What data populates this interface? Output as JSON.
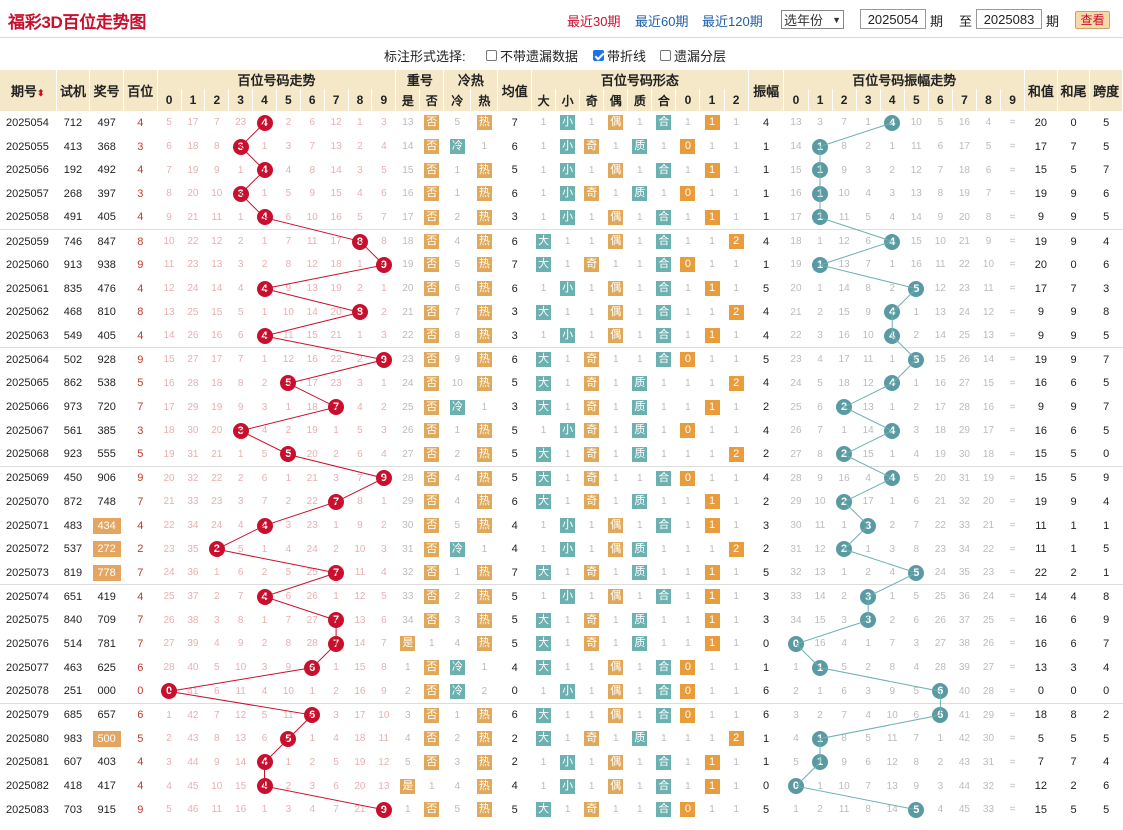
{
  "title": "福彩3D百位走势图",
  "nav": {
    "p30": "最近30期",
    "p60": "最近60期",
    "p120": "最近120期"
  },
  "year_select": "选年份",
  "range": {
    "from": "2025054",
    "to": "2025083",
    "lbl_qi": "期",
    "lbl_zhi": "至"
  },
  "query_button": "查看",
  "options": {
    "label": "标注形式选择:",
    "items": [
      {
        "label": "不带遗漏数据",
        "checked": false
      },
      {
        "label": "带折线",
        "checked": true
      },
      {
        "label": "遗漏分层",
        "checked": false
      }
    ]
  },
  "headers": {
    "issue": "期号",
    "shiji": "试机",
    "jianghao": "奖号",
    "bai": "百位",
    "trend": "百位号码走势",
    "chonghao": "重号",
    "lengre": "冷热",
    "junzhi": "均值",
    "xingtai": "百位号码形态",
    "zhenfu": "振幅",
    "zftrend": "百位号码振幅走势",
    "hezhi": "和值",
    "hewei": "和尾",
    "kuadu": "跨度",
    "shi": "是",
    "fou": "否",
    "leng": "冷",
    "re": "热",
    "da": "大",
    "xiao": "小",
    "ji": "奇",
    "ou": "偶",
    "zhi": "质",
    "he": "合",
    "digits": [
      "0",
      "1",
      "2",
      "3",
      "4",
      "5",
      "6",
      "7",
      "8",
      "9"
    ],
    "road": [
      "0",
      "1",
      "2"
    ]
  },
  "colors": {
    "red": "#c8102e",
    "orange": "#e0a85a",
    "teal": "#6db0b0",
    "header": "#f5e8c8"
  },
  "rows": [
    {
      "qh": "2025054",
      "sj": "712",
      "jh": "497",
      "zu": false,
      "b": 4,
      "tr": [
        "5",
        "17",
        "7",
        "23",
        "4",
        "2",
        "6",
        "12",
        "1",
        "3"
      ],
      "ch": "13",
      "lr": "热",
      "lrv": "5",
      "jz": "7",
      "zf": "4",
      "zft": [
        "13",
        "3",
        "7",
        "1",
        "4",
        "10",
        "5",
        "16",
        "4",
        "="
      ],
      "hz": "20",
      "hw": "0",
      "kd": "5"
    },
    {
      "qh": "2025055",
      "sj": "413",
      "jh": "368",
      "zu": false,
      "b": 3,
      "tr": [
        "6",
        "18",
        "8",
        "3",
        "1",
        "3",
        "7",
        "13",
        "2",
        "4"
      ],
      "ch": "14",
      "lr": "冷",
      "lrv": "1",
      "jz": "6",
      "zf": "1",
      "zft": [
        "14",
        "1",
        "8",
        "2",
        "1",
        "11",
        "6",
        "17",
        "5",
        "="
      ],
      "hz": "17",
      "hw": "7",
      "kd": "5"
    },
    {
      "qh": "2025056",
      "sj": "192",
      "jh": "492",
      "zu": false,
      "b": 4,
      "tr": [
        "7",
        "19",
        "9",
        "1",
        "4",
        "4",
        "8",
        "14",
        "3",
        "5"
      ],
      "ch": "15",
      "lr": "热",
      "lrv": "1",
      "jz": "5",
      "zf": "1",
      "zft": [
        "15",
        "1",
        "9",
        "3",
        "2",
        "12",
        "7",
        "18",
        "6",
        "="
      ],
      "hz": "15",
      "hw": "5",
      "kd": "7"
    },
    {
      "qh": "2025057",
      "sj": "268",
      "jh": "397",
      "zu": false,
      "b": 3,
      "tr": [
        "8",
        "20",
        "10",
        "3",
        "1",
        "5",
        "9",
        "15",
        "4",
        "6"
      ],
      "ch": "16",
      "lr": "热",
      "lrv": "1",
      "jz": "6",
      "zf": "1",
      "zft": [
        "16",
        "1",
        "10",
        "4",
        "3",
        "13",
        "8",
        "19",
        "7",
        "="
      ],
      "hz": "19",
      "hw": "9",
      "kd": "6"
    },
    {
      "qh": "2025058",
      "sj": "491",
      "jh": "405",
      "zu": false,
      "b": 4,
      "tr": [
        "9",
        "21",
        "11",
        "1",
        "4",
        "6",
        "10",
        "16",
        "5",
        "7"
      ],
      "ch": "17",
      "lr": "热",
      "lrv": "2",
      "jz": "3",
      "zf": "1",
      "zft": [
        "17",
        "1",
        "11",
        "5",
        "4",
        "14",
        "9",
        "20",
        "8",
        "="
      ],
      "hz": "9",
      "hw": "9",
      "kd": "5"
    },
    {
      "qh": "2025059",
      "sj": "746",
      "jh": "847",
      "zu": false,
      "b": 8,
      "tr": [
        "10",
        "22",
        "12",
        "2",
        "1",
        "7",
        "11",
        "17",
        "8",
        "8"
      ],
      "ch": "18",
      "lr": "热",
      "lrv": "4",
      "jz": "6",
      "zf": "4",
      "zft": [
        "18",
        "1",
        "12",
        "6",
        "4",
        "15",
        "10",
        "21",
        "9",
        "="
      ],
      "hz": "19",
      "hw": "9",
      "kd": "4"
    },
    {
      "qh": "2025060",
      "sj": "913",
      "jh": "938",
      "zu": false,
      "b": 9,
      "tr": [
        "11",
        "23",
        "13",
        "3",
        "2",
        "8",
        "12",
        "18",
        "1",
        "9"
      ],
      "ch": "19",
      "lr": "热",
      "lrv": "5",
      "jz": "7",
      "zf": "1",
      "zft": [
        "19",
        "1",
        "13",
        "7",
        "1",
        "16",
        "11",
        "22",
        "10",
        "="
      ],
      "hz": "20",
      "hw": "0",
      "kd": "6"
    },
    {
      "qh": "2025061",
      "sj": "835",
      "jh": "476",
      "zu": false,
      "b": 4,
      "tr": [
        "12",
        "24",
        "14",
        "4",
        "4",
        "9",
        "13",
        "19",
        "2",
        "1"
      ],
      "ch": "20",
      "lr": "热",
      "lrv": "6",
      "jz": "6",
      "zf": "5",
      "zft": [
        "20",
        "1",
        "14",
        "8",
        "2",
        "5",
        "12",
        "23",
        "11",
        "="
      ],
      "hz": "17",
      "hw": "7",
      "kd": "3"
    },
    {
      "qh": "2025062",
      "sj": "468",
      "jh": "810",
      "zu": false,
      "b": 8,
      "tr": [
        "13",
        "25",
        "15",
        "5",
        "1",
        "10",
        "14",
        "20",
        "8",
        "2"
      ],
      "ch": "21",
      "lr": "热",
      "lrv": "7",
      "jz": "3",
      "zf": "4",
      "zft": [
        "21",
        "2",
        "15",
        "9",
        "4",
        "1",
        "13",
        "24",
        "12",
        "="
      ],
      "hz": "9",
      "hw": "9",
      "kd": "8"
    },
    {
      "qh": "2025063",
      "sj": "549",
      "jh": "405",
      "zu": false,
      "b": 4,
      "tr": [
        "14",
        "26",
        "16",
        "6",
        "4",
        "11",
        "15",
        "21",
        "1",
        "3"
      ],
      "ch": "22",
      "lr": "热",
      "lrv": "8",
      "jz": "3",
      "zf": "4",
      "zft": [
        "22",
        "3",
        "16",
        "10",
        "4",
        "2",
        "14",
        "25",
        "13",
        "="
      ],
      "hz": "9",
      "hw": "9",
      "kd": "5"
    },
    {
      "qh": "2025064",
      "sj": "502",
      "jh": "928",
      "zu": false,
      "b": 9,
      "tr": [
        "15",
        "27",
        "17",
        "7",
        "1",
        "12",
        "16",
        "22",
        "2",
        "9"
      ],
      "ch": "23",
      "lr": "热",
      "lrv": "9",
      "jz": "6",
      "zf": "5",
      "zft": [
        "23",
        "4",
        "17",
        "11",
        "1",
        "5",
        "15",
        "26",
        "14",
        "="
      ],
      "hz": "19",
      "hw": "9",
      "kd": "7"
    },
    {
      "qh": "2025065",
      "sj": "862",
      "jh": "538",
      "zu": false,
      "b": 5,
      "tr": [
        "16",
        "28",
        "18",
        "8",
        "2",
        "5",
        "17",
        "23",
        "3",
        "1"
      ],
      "ch": "24",
      "lr": "热",
      "lrv": "10",
      "jz": "5",
      "zf": "4",
      "zft": [
        "24",
        "5",
        "18",
        "12",
        "4",
        "1",
        "16",
        "27",
        "15",
        "="
      ],
      "hz": "16",
      "hw": "6",
      "kd": "5"
    },
    {
      "qh": "2025066",
      "sj": "973",
      "jh": "720",
      "zu": false,
      "b": 7,
      "tr": [
        "17",
        "29",
        "19",
        "9",
        "3",
        "1",
        "18",
        "7",
        "4",
        "2"
      ],
      "ch": "25",
      "lr": "冷",
      "lrv": "1",
      "jz": "3",
      "zf": "2",
      "zft": [
        "25",
        "6",
        "2",
        "13",
        "1",
        "2",
        "17",
        "28",
        "16",
        "="
      ],
      "hz": "9",
      "hw": "9",
      "kd": "7"
    },
    {
      "qh": "2025067",
      "sj": "561",
      "jh": "385",
      "zu": false,
      "b": 3,
      "tr": [
        "18",
        "30",
        "20",
        "3",
        "4",
        "2",
        "19",
        "1",
        "5",
        "3"
      ],
      "ch": "26",
      "lr": "热",
      "lrv": "1",
      "jz": "5",
      "zf": "4",
      "zft": [
        "26",
        "7",
        "1",
        "14",
        "4",
        "3",
        "18",
        "29",
        "17",
        "="
      ],
      "hz": "16",
      "hw": "6",
      "kd": "5"
    },
    {
      "qh": "2025068",
      "sj": "923",
      "jh": "555",
      "zu": false,
      "b": 5,
      "tr": [
        "19",
        "31",
        "21",
        "1",
        "5",
        "5",
        "20",
        "2",
        "6",
        "4"
      ],
      "ch": "27",
      "lr": "热",
      "lrv": "2",
      "jz": "5",
      "zf": "2",
      "zft": [
        "27",
        "8",
        "2",
        "15",
        "1",
        "4",
        "19",
        "30",
        "18",
        "="
      ],
      "hz": "15",
      "hw": "5",
      "kd": "0"
    },
    {
      "qh": "2025069",
      "sj": "450",
      "jh": "906",
      "zu": false,
      "b": 9,
      "tr": [
        "20",
        "32",
        "22",
        "2",
        "6",
        "1",
        "21",
        "3",
        "7",
        "9"
      ],
      "ch": "28",
      "lr": "热",
      "lrv": "4",
      "jz": "5",
      "zf": "4",
      "zft": [
        "28",
        "9",
        "16",
        "4",
        "4",
        "5",
        "20",
        "31",
        "19",
        "="
      ],
      "hz": "15",
      "hw": "5",
      "kd": "9"
    },
    {
      "qh": "2025070",
      "sj": "872",
      "jh": "748",
      "zu": false,
      "b": 7,
      "tr": [
        "21",
        "33",
        "23",
        "3",
        "7",
        "2",
        "22",
        "7",
        "8",
        "1"
      ],
      "ch": "29",
      "lr": "热",
      "lrv": "4",
      "jz": "6",
      "zf": "2",
      "zft": [
        "29",
        "10",
        "2",
        "17",
        "1",
        "6",
        "21",
        "32",
        "20",
        "="
      ],
      "hz": "19",
      "hw": "9",
      "kd": "4"
    },
    {
      "qh": "2025071",
      "sj": "483",
      "jh": "434",
      "zu": true,
      "b": 4,
      "tr": [
        "22",
        "34",
        "24",
        "4",
        "4",
        "3",
        "23",
        "1",
        "9",
        "2"
      ],
      "ch": "30",
      "lr": "热",
      "lrv": "5",
      "jz": "4",
      "zf": "3",
      "zft": [
        "30",
        "11",
        "1",
        "3",
        "2",
        "7",
        "22",
        "33",
        "21",
        "="
      ],
      "hz": "11",
      "hw": "1",
      "kd": "1"
    },
    {
      "qh": "2025072",
      "sj": "537",
      "jh": "272",
      "zu": true,
      "b": 2,
      "tr": [
        "23",
        "35",
        "2",
        "5",
        "1",
        "4",
        "24",
        "2",
        "10",
        "3"
      ],
      "ch": "31",
      "lr": "冷",
      "lrv": "1",
      "jz": "4",
      "zf": "2",
      "zft": [
        "31",
        "12",
        "2",
        "1",
        "3",
        "8",
        "23",
        "34",
        "22",
        "="
      ],
      "hz": "11",
      "hw": "1",
      "kd": "5"
    },
    {
      "qh": "2025073",
      "sj": "819",
      "jh": "778",
      "zu": true,
      "b": 7,
      "tr": [
        "24",
        "36",
        "1",
        "6",
        "2",
        "5",
        "25",
        "7",
        "11",
        "4"
      ],
      "ch": "32",
      "lr": "热",
      "lrv": "1",
      "jz": "7",
      "zf": "5",
      "zft": [
        "32",
        "13",
        "1",
        "2",
        "4",
        "5",
        "24",
        "35",
        "23",
        "="
      ],
      "hz": "22",
      "hw": "2",
      "kd": "1"
    },
    {
      "qh": "2025074",
      "sj": "651",
      "jh": "419",
      "zu": false,
      "b": 4,
      "tr": [
        "25",
        "37",
        "2",
        "7",
        "4",
        "6",
        "26",
        "1",
        "12",
        "5"
      ],
      "ch": "33",
      "lr": "热",
      "lrv": "2",
      "jz": "5",
      "zf": "3",
      "zft": [
        "33",
        "14",
        "2",
        "3",
        "1",
        "5",
        "25",
        "36",
        "24",
        "="
      ],
      "hz": "14",
      "hw": "4",
      "kd": "8"
    },
    {
      "qh": "2025075",
      "sj": "840",
      "jh": "709",
      "zu": false,
      "b": 7,
      "tr": [
        "26",
        "38",
        "3",
        "8",
        "1",
        "7",
        "27",
        "7",
        "13",
        "6"
      ],
      "ch": "34",
      "lr": "热",
      "lrv": "3",
      "jz": "5",
      "zf": "3",
      "zft": [
        "34",
        "15",
        "3",
        "3",
        "2",
        "6",
        "26",
        "37",
        "25",
        "="
      ],
      "hz": "16",
      "hw": "6",
      "kd": "9"
    },
    {
      "qh": "2025076",
      "sj": "514",
      "jh": "781",
      "zu": false,
      "b": 7,
      "tr": [
        "27",
        "39",
        "4",
        "9",
        "2",
        "8",
        "28",
        "7",
        "14",
        "7"
      ],
      "ch": "是",
      "lr": "热",
      "lrv": "4",
      "jz": "5",
      "zf": "0",
      "zft": [
        "0",
        "16",
        "4",
        "1",
        "7",
        "3",
        "27",
        "38",
        "26",
        "="
      ],
      "hz": "16",
      "hw": "6",
      "kd": "7"
    },
    {
      "qh": "2025077",
      "sj": "463",
      "jh": "625",
      "zu": false,
      "b": 6,
      "tr": [
        "28",
        "40",
        "5",
        "10",
        "3",
        "9",
        "6",
        "1",
        "15",
        "8"
      ],
      "ch": "1",
      "lr": "冷",
      "lrv": "1",
      "jz": "4",
      "zf": "1",
      "zft": [
        "1",
        "1",
        "5",
        "2",
        "8",
        "4",
        "28",
        "39",
        "27",
        "="
      ],
      "hz": "13",
      "hw": "3",
      "kd": "4"
    },
    {
      "qh": "2025078",
      "sj": "251",
      "jh": "000",
      "zu": false,
      "b": 0,
      "tr": [
        "0",
        "41",
        "6",
        "11",
        "4",
        "10",
        "1",
        "2",
        "16",
        "9"
      ],
      "ch": "2",
      "lr": "冷",
      "lrv": "2",
      "jz": "0",
      "zf": "6",
      "zft": [
        "2",
        "1",
        "6",
        "3",
        "9",
        "5",
        "6",
        "40",
        "28",
        "="
      ],
      "hz": "0",
      "hw": "0",
      "kd": "0"
    },
    {
      "qh": "2025079",
      "sj": "685",
      "jh": "657",
      "zu": false,
      "b": 6,
      "tr": [
        "1",
        "42",
        "7",
        "12",
        "5",
        "11",
        "6",
        "3",
        "17",
        "10"
      ],
      "ch": "3",
      "lr": "热",
      "lrv": "1",
      "jz": "6",
      "zf": "6",
      "zft": [
        "3",
        "2",
        "7",
        "4",
        "10",
        "6",
        "6",
        "41",
        "29",
        "="
      ],
      "hz": "18",
      "hw": "8",
      "kd": "2"
    },
    {
      "qh": "2025080",
      "sj": "983",
      "jh": "500",
      "zu": true,
      "b": 5,
      "tr": [
        "2",
        "43",
        "8",
        "13",
        "6",
        "5",
        "1",
        "4",
        "18",
        "11"
      ],
      "ch": "4",
      "lr": "热",
      "lrv": "2",
      "jz": "2",
      "zf": "1",
      "zft": [
        "4",
        "1",
        "8",
        "5",
        "11",
        "7",
        "1",
        "42",
        "30",
        "="
      ],
      "hz": "5",
      "hw": "5",
      "kd": "5"
    },
    {
      "qh": "2025081",
      "sj": "607",
      "jh": "403",
      "zu": false,
      "b": 4,
      "tr": [
        "3",
        "44",
        "9",
        "14",
        "4",
        "1",
        "2",
        "5",
        "19",
        "12"
      ],
      "ch": "5",
      "lr": "热",
      "lrv": "3",
      "jz": "2",
      "zf": "1",
      "zft": [
        "5",
        "1",
        "9",
        "6",
        "12",
        "8",
        "2",
        "43",
        "31",
        "="
      ],
      "hz": "7",
      "hw": "7",
      "kd": "4"
    },
    {
      "qh": "2025082",
      "sj": "418",
      "jh": "417",
      "zu": false,
      "b": 4,
      "tr": [
        "4",
        "45",
        "10",
        "15",
        "4",
        "2",
        "3",
        "6",
        "20",
        "13"
      ],
      "ch": "是",
      "lr": "热",
      "lrv": "4",
      "jz": "4",
      "zf": "0",
      "zft": [
        "0",
        "1",
        "10",
        "7",
        "13",
        "9",
        "3",
        "44",
        "32",
        "="
      ],
      "hz": "12",
      "hw": "2",
      "kd": "6"
    },
    {
      "qh": "2025083",
      "sj": "703",
      "jh": "915",
      "zu": false,
      "b": 9,
      "tr": [
        "5",
        "46",
        "11",
        "16",
        "1",
        "3",
        "4",
        "7",
        "21",
        "9"
      ],
      "ch": "1",
      "lr": "热",
      "lrv": "5",
      "jz": "5",
      "zf": "5",
      "zft": [
        "1",
        "2",
        "11",
        "8",
        "14",
        "5",
        "4",
        "45",
        "33",
        "="
      ],
      "hz": "15",
      "hw": "5",
      "kd": "5"
    }
  ]
}
